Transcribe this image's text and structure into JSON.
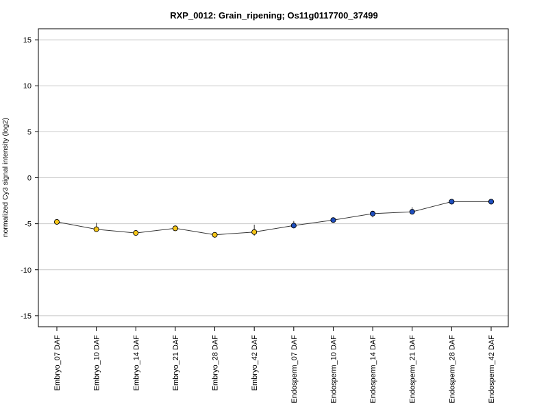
{
  "chart_data": {
    "type": "line",
    "title": "RXP_0012: Grain_ripening; Os11g0117700_37499",
    "xlabel": "",
    "ylabel": "normalized Cy3 signal intensity (log2)",
    "ylim": [
      -16.2,
      16.2
    ],
    "yticks": [
      -15,
      -10,
      -5,
      0,
      5,
      10,
      15
    ],
    "grid": true,
    "categories": [
      "Embryo_07 DAF",
      "Embryo_10 DAF",
      "Embryo_14 DAF",
      "Embryo_21 DAF",
      "Embryo_28 DAF",
      "Embryo_42 DAF",
      "Endosperm_07 DAF",
      "Endosperm_10 DAF",
      "Endosperm_14 DAF",
      "Endosperm_21 DAF",
      "Endosperm_28 DAF",
      "Endosperm_42 DAF"
    ],
    "series": [
      {
        "values": [
          -4.8,
          -5.6,
          -6.0,
          -5.5,
          -6.2,
          -5.9,
          -5.2,
          -4.6,
          -3.9,
          -3.7,
          -2.6,
          -2.6
        ],
        "error_low": [
          -5.0,
          -5.8,
          -6.1,
          -5.6,
          -6.5,
          -6.3,
          -5.4,
          -4.7,
          -4.3,
          -3.9,
          -2.7,
          -2.7
        ],
        "error_high": [
          -4.6,
          -4.9,
          -5.9,
          -5.3,
          -6.0,
          -5.1,
          -4.7,
          -4.5,
          -3.6,
          -3.2,
          -2.5,
          -2.5
        ],
        "marker_colors": [
          "#f5c518",
          "#f5c518",
          "#f5c518",
          "#f5c518",
          "#f5c518",
          "#f5c518",
          "#1f4fbf",
          "#1f4fbf",
          "#1f4fbf",
          "#1f4fbf",
          "#1f4fbf",
          "#1f4fbf"
        ]
      }
    ]
  }
}
